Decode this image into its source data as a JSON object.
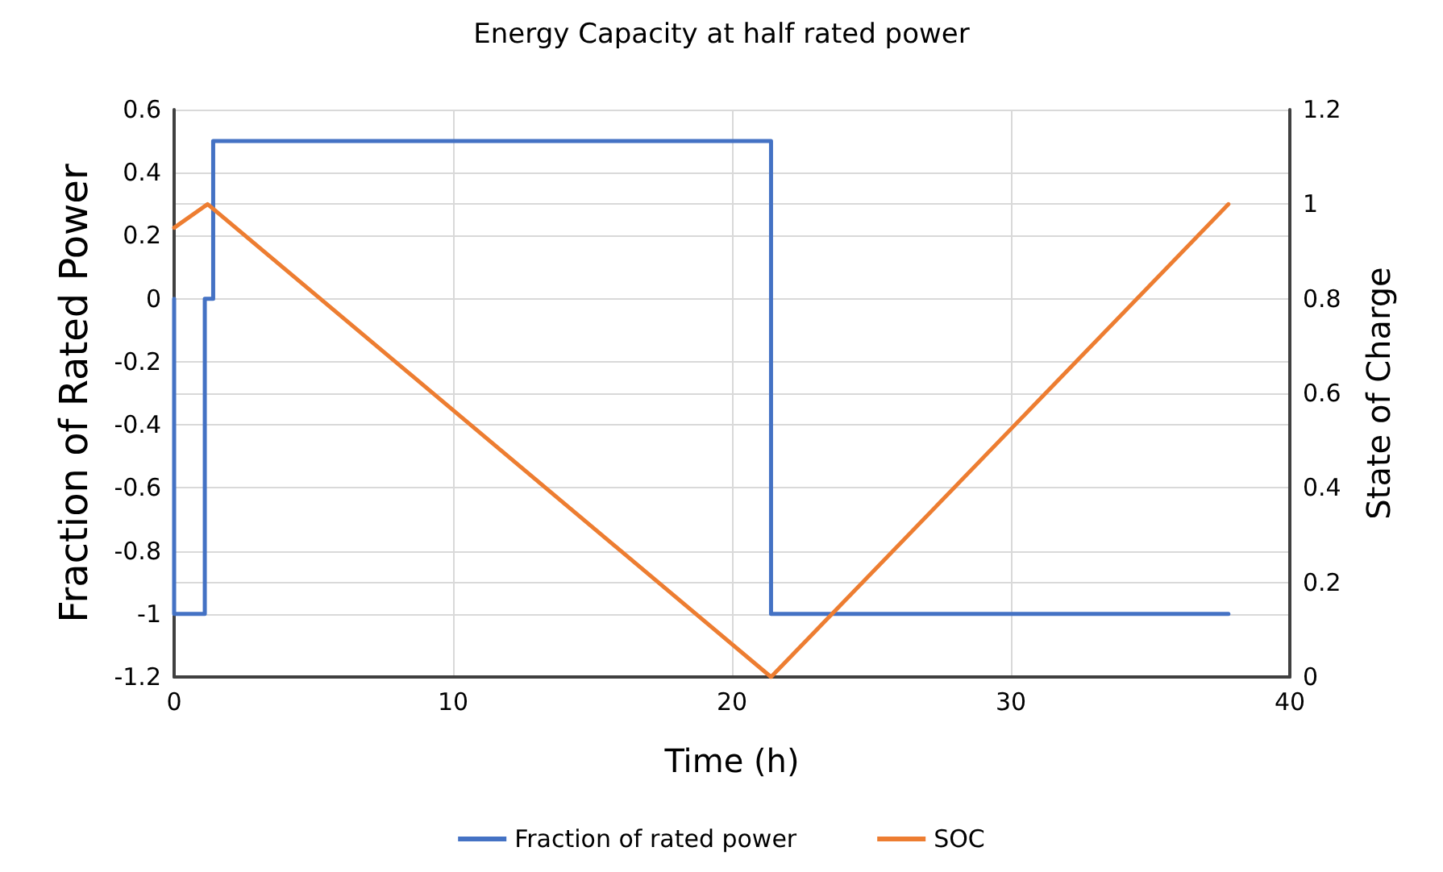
{
  "chart_data": {
    "type": "line",
    "title": "Energy Capacity at half rated power",
    "xlabel": "Time (h)",
    "ylabel": "Fraction of Rated Power",
    "y2label": "State of Charge",
    "xlim": [
      0,
      40
    ],
    "xticks": [
      0,
      10,
      20,
      30,
      40
    ],
    "ylim": [
      -1.2,
      0.6
    ],
    "yticks": [
      -1.2,
      -1,
      -0.8,
      -0.6,
      -0.4,
      -0.2,
      0,
      0.2,
      0.4,
      0.6
    ],
    "y2lim": [
      0,
      1.2
    ],
    "y2ticks": [
      0,
      0.2,
      0.4,
      0.6,
      0.8,
      1,
      1.2
    ],
    "grid": true,
    "legend": "bottom",
    "marker": "none",
    "line_style": "solid",
    "series": [
      {
        "name": "Fraction of rated power",
        "color": "#4472c4",
        "x": [
          0,
          0,
          1.1,
          1.1,
          1.4,
          1.4,
          21.4,
          21.4,
          37.8
        ],
        "values": [
          0,
          -1,
          -1,
          0,
          0,
          0.5,
          0.5,
          -1,
          -1
        ]
      },
      {
        "name": "SOC",
        "color": "#ed7d31",
        "axis": "y2",
        "x": [
          0,
          1.2,
          21.4,
          37.8
        ],
        "values": [
          0.95,
          1,
          0,
          1
        ]
      }
    ]
  }
}
